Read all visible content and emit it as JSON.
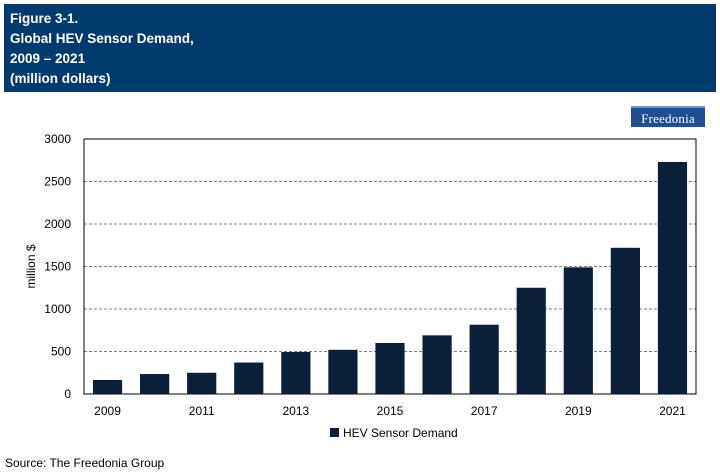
{
  "header": {
    "line1": "Figure 3-1.",
    "line2": "Global HEV Sensor Demand,",
    "line3": "2009 – 2021",
    "line4": "(million dollars)"
  },
  "logo": {
    "text": "Freedonia"
  },
  "source": "Source: The Freedonia Group",
  "colors": {
    "header_bg": "#003b6f",
    "bar": "#0b1f38",
    "grid": "#555555"
  },
  "chart_data": {
    "type": "bar",
    "categories": [
      "2009",
      "2010",
      "2011",
      "2012",
      "2013",
      "2014",
      "2015",
      "2016",
      "2017",
      "2018",
      "2019",
      "2020",
      "2021"
    ],
    "x_tick_labels": [
      "2009",
      "",
      "2011",
      "",
      "2013",
      "",
      "2015",
      "",
      "2017",
      "",
      "2019",
      "",
      "2021"
    ],
    "series": [
      {
        "name": "HEV Sensor Demand",
        "values": [
          165,
          235,
          250,
          370,
          495,
          520,
          600,
          690,
          815,
          1250,
          1490,
          1720,
          2730
        ]
      }
    ],
    "ylabel": "million $",
    "xlabel": "",
    "ylim": [
      0,
      3000
    ],
    "yticks": [
      0,
      500,
      1000,
      1500,
      2000,
      2500,
      3000
    ],
    "grid": "horizontal dashed",
    "legend": "bottom-center"
  }
}
